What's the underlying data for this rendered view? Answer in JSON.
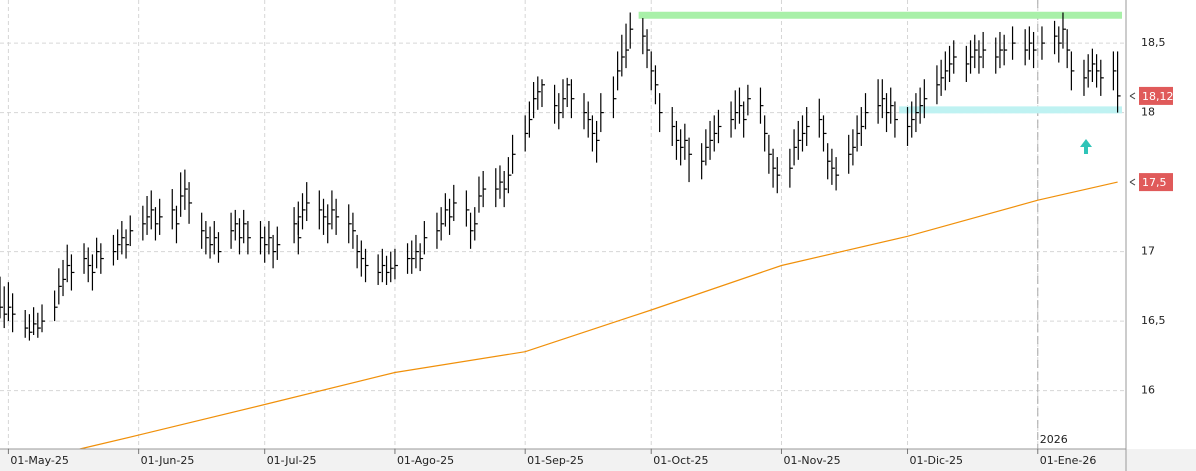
{
  "chart_data": {
    "type": "ohlc",
    "xlim": [
      "2025-04-29",
      "2026-01-22"
    ],
    "ylim": [
      15.58,
      18.81
    ],
    "yticks": [
      16,
      {
        "value": 16.5,
        "label": "16,5"
      },
      17,
      18,
      {
        "value": 18.5,
        "label": "18,5"
      }
    ],
    "xticks": [
      {
        "value": "2025-05-01",
        "label": "01-May-25"
      },
      {
        "value": "2025-06-01",
        "label": "01-Jun-25"
      },
      {
        "value": "2025-07-01",
        "label": "01-Jul-25"
      },
      {
        "value": "2025-08-01",
        "label": "01-Ago-25"
      },
      {
        "value": "2025-09-01",
        "label": "01-Sep-25"
      },
      {
        "value": "2025-10-01",
        "label": "01-Oct-25"
      },
      {
        "value": "2025-11-01",
        "label": "01-Nov-25"
      },
      {
        "value": "2025-12-01",
        "label": "01-Dic-25"
      },
      {
        "value": "2026-01-01",
        "label": "01-Ene-26"
      }
    ],
    "year_marker": {
      "value": "2026-01-01",
      "label": "2026"
    },
    "grid": true,
    "bar_color": "#000000",
    "bars": [
      [
        "2025-04-29",
        16.82,
        16.52,
        16.6
      ],
      [
        "2025-04-30",
        16.75,
        16.45,
        16.55
      ],
      [
        "2025-05-01",
        16.78,
        16.5,
        16.6
      ],
      [
        "2025-05-02",
        16.7,
        16.42,
        16.55
      ],
      [
        "2025-05-05",
        16.58,
        16.38,
        16.45
      ],
      [
        "2025-05-06",
        16.55,
        16.36,
        16.42
      ],
      [
        "2025-05-07",
        16.6,
        16.4,
        16.48
      ],
      [
        "2025-05-08",
        16.56,
        16.38,
        16.45
      ],
      [
        "2025-05-09",
        16.62,
        16.42,
        16.5
      ],
      [
        "2025-05-12",
        16.72,
        16.5,
        16.6
      ],
      [
        "2025-05-13",
        16.88,
        16.62,
        16.75
      ],
      [
        "2025-05-14",
        16.94,
        16.68,
        16.8
      ],
      [
        "2025-05-15",
        17.05,
        16.78,
        16.9
      ],
      [
        "2025-05-16",
        16.98,
        16.72,
        16.85
      ],
      [
        "2025-05-19",
        17.06,
        16.84,
        16.95
      ],
      [
        "2025-05-20",
        17.03,
        16.78,
        16.9
      ],
      [
        "2025-05-21",
        16.98,
        16.72,
        16.85
      ],
      [
        "2025-05-22",
        17.1,
        16.88,
        17.0
      ],
      [
        "2025-05-23",
        17.06,
        16.84,
        16.95
      ],
      [
        "2025-05-26",
        17.12,
        16.9,
        17.0
      ],
      [
        "2025-05-27",
        17.16,
        16.94,
        17.05
      ],
      [
        "2025-05-28",
        17.22,
        16.98,
        17.1
      ],
      [
        "2025-05-29",
        17.16,
        16.95,
        17.05
      ],
      [
        "2025-05-30",
        17.26,
        17.04,
        17.15
      ],
      [
        "2025-06-02",
        17.33,
        17.08,
        17.2
      ],
      [
        "2025-06-03",
        17.4,
        17.12,
        17.25
      ],
      [
        "2025-06-04",
        17.44,
        17.16,
        17.3
      ],
      [
        "2025-06-05",
        17.32,
        17.08,
        17.2
      ],
      [
        "2025-06-06",
        17.38,
        17.12,
        17.25
      ],
      [
        "2025-06-09",
        17.45,
        17.16,
        17.3
      ],
      [
        "2025-06-10",
        17.33,
        17.06,
        17.2
      ],
      [
        "2025-06-11",
        17.57,
        17.25,
        17.4
      ],
      [
        "2025-06-12",
        17.59,
        17.3,
        17.45
      ],
      [
        "2025-06-13",
        17.5,
        17.2,
        17.35
      ],
      [
        "2025-06-16",
        17.28,
        17.02,
        17.15
      ],
      [
        "2025-06-17",
        17.22,
        16.98,
        17.1
      ],
      [
        "2025-06-18",
        17.18,
        16.95,
        17.05
      ],
      [
        "2025-06-19",
        17.22,
        16.98,
        17.1
      ],
      [
        "2025-06-20",
        17.14,
        16.92,
        17.0
      ],
      [
        "2025-06-23",
        17.28,
        17.02,
        17.15
      ],
      [
        "2025-06-24",
        17.3,
        17.08,
        17.2
      ],
      [
        "2025-06-25",
        17.24,
        16.98,
        17.1
      ],
      [
        "2025-06-26",
        17.3,
        17.06,
        17.2
      ],
      [
        "2025-06-27",
        17.22,
        16.98,
        17.1
      ],
      [
        "2025-06-30",
        17.22,
        16.98,
        17.1
      ],
      [
        "2025-07-01",
        17.18,
        16.92,
        17.05
      ],
      [
        "2025-07-02",
        17.22,
        16.98,
        17.1
      ],
      [
        "2025-07-03",
        17.12,
        16.88,
        17.0
      ],
      [
        "2025-07-04",
        17.18,
        16.94,
        17.05
      ],
      [
        "2025-07-09",
        17.22,
        16.98,
        17.1
      ],
      [
        "2025-07-08",
        17.32,
        17.06,
        17.2
      ],
      [
        "2025-07-09",
        17.36,
        17.12,
        17.25
      ],
      [
        "2025-07-10",
        17.42,
        17.16,
        17.3
      ],
      [
        "2025-07-11",
        17.5,
        17.22,
        17.35
      ],
      [
        "2025-07-14",
        17.44,
        17.16,
        17.3
      ],
      [
        "2025-07-15",
        17.38,
        17.12,
        17.25
      ],
      [
        "2025-07-16",
        17.34,
        17.06,
        17.2
      ],
      [
        "2025-07-17",
        17.44,
        17.16,
        17.3
      ],
      [
        "2025-07-18",
        17.38,
        17.12,
        17.25
      ],
      [
        "2025-07-21",
        17.34,
        17.06,
        17.2
      ],
      [
        "2025-07-22",
        17.28,
        17.02,
        17.15
      ],
      [
        "2025-07-23",
        17.12,
        16.88,
        17.0
      ],
      [
        "2025-07-24",
        17.08,
        16.82,
        16.95
      ],
      [
        "2025-07-25",
        17.02,
        16.78,
        16.9
      ],
      [
        "2025-07-28",
        16.98,
        16.76,
        16.85
      ],
      [
        "2025-07-29",
        17.02,
        16.78,
        16.9
      ],
      [
        "2025-07-30",
        16.97,
        16.76,
        16.85
      ],
      [
        "2025-07-31",
        17.0,
        16.78,
        16.88
      ],
      [
        "2025-08-01",
        17.02,
        16.8,
        16.9
      ],
      [
        "2025-08-04",
        17.06,
        16.84,
        16.95
      ],
      [
        "2025-08-05",
        17.08,
        16.84,
        16.95
      ],
      [
        "2025-08-06",
        17.12,
        16.88,
        17.0
      ],
      [
        "2025-08-07",
        17.06,
        16.86,
        16.95
      ],
      [
        "2025-08-08",
        17.22,
        16.98,
        17.1
      ],
      [
        "2025-08-11",
        17.28,
        17.02,
        17.15
      ],
      [
        "2025-08-12",
        17.32,
        17.08,
        17.2
      ],
      [
        "2025-08-13",
        17.42,
        17.18,
        17.3
      ],
      [
        "2025-08-14",
        17.38,
        17.12,
        17.25
      ],
      [
        "2025-08-15",
        17.48,
        17.22,
        17.35
      ],
      [
        "2025-08-18",
        17.44,
        17.18,
        17.3
      ],
      [
        "2025-08-19",
        17.28,
        17.02,
        17.15
      ],
      [
        "2025-08-20",
        17.32,
        17.08,
        17.2
      ],
      [
        "2025-08-21",
        17.54,
        17.28,
        17.4
      ],
      [
        "2025-08-22",
        17.58,
        17.32,
        17.45
      ],
      [
        "2025-08-25",
        17.6,
        17.32,
        17.45
      ],
      [
        "2025-08-26",
        17.62,
        17.38,
        17.5
      ],
      [
        "2025-08-27",
        17.58,
        17.32,
        17.45
      ],
      [
        "2025-08-28",
        17.68,
        17.42,
        17.55
      ],
      [
        "2025-08-29",
        17.84,
        17.56,
        17.7
      ],
      [
        "2025-09-01",
        17.98,
        17.72,
        17.85
      ],
      [
        "2025-09-02",
        18.08,
        17.82,
        17.95
      ],
      [
        "2025-09-03",
        18.22,
        17.96,
        18.1
      ],
      [
        "2025-09-04",
        18.26,
        18.02,
        18.15
      ],
      [
        "2025-09-05",
        18.24,
        18.04,
        18.2
      ],
      [
        "2025-09-08",
        18.2,
        17.92,
        18.05
      ],
      [
        "2025-09-09",
        18.14,
        17.88,
        18.0
      ],
      [
        "2025-09-10",
        18.24,
        17.96,
        18.1
      ],
      [
        "2025-09-11",
        18.25,
        18.04,
        18.2
      ],
      [
        "2025-09-12",
        18.24,
        17.96,
        18.1
      ],
      [
        "2025-09-15",
        18.14,
        17.88,
        18.0
      ],
      [
        "2025-09-16",
        18.08,
        17.82,
        17.95
      ],
      [
        "2025-09-17",
        17.98,
        17.72,
        17.85
      ],
      [
        "2025-09-18",
        17.94,
        17.64,
        17.8
      ],
      [
        "2025-09-19",
        18.14,
        17.86,
        18.0
      ],
      [
        "2025-09-22",
        18.26,
        17.96,
        18.1
      ],
      [
        "2025-09-23",
        18.44,
        18.16,
        18.3
      ],
      [
        "2025-09-24",
        18.56,
        18.26,
        18.4
      ],
      [
        "2025-09-25",
        18.64,
        18.32,
        18.45
      ],
      [
        "2025-09-26",
        18.72,
        18.46,
        18.6
      ],
      [
        "2025-09-29",
        18.68,
        18.42,
        18.55
      ],
      [
        "2025-09-30",
        18.6,
        18.32,
        18.45
      ],
      [
        "2025-10-01",
        18.44,
        18.16,
        18.3
      ],
      [
        "2025-10-02",
        18.34,
        18.06,
        18.2
      ],
      [
        "2025-10-03",
        18.14,
        17.86,
        18.0
      ],
      [
        "2025-10-06",
        18.04,
        17.76,
        17.9
      ],
      [
        "2025-10-07",
        17.94,
        17.66,
        17.8
      ],
      [
        "2025-10-08",
        17.88,
        17.62,
        17.75
      ],
      [
        "2025-10-09",
        17.92,
        17.66,
        17.8
      ],
      [
        "2025-10-10",
        17.82,
        17.5,
        17.7
      ],
      [
        "2025-10-13",
        17.78,
        17.52,
        17.65
      ],
      [
        "2025-10-14",
        17.88,
        17.62,
        17.75
      ],
      [
        "2025-10-15",
        17.94,
        17.66,
        17.8
      ],
      [
        "2025-10-16",
        17.98,
        17.72,
        17.85
      ],
      [
        "2025-10-17",
        18.02,
        17.78,
        17.9
      ],
      [
        "2025-10-20",
        18.08,
        17.82,
        17.95
      ],
      [
        "2025-10-21",
        18.16,
        17.88,
        18.0
      ],
      [
        "2025-10-22",
        18.18,
        17.92,
        18.05
      ],
      [
        "2025-10-23",
        18.08,
        17.82,
        17.95
      ],
      [
        "2025-10-24",
        18.2,
        17.98,
        18.1
      ],
      [
        "2025-10-27",
        18.18,
        17.92,
        18.05
      ],
      [
        "2025-10-28",
        17.98,
        17.72,
        17.85
      ],
      [
        "2025-10-29",
        17.84,
        17.56,
        17.7
      ],
      [
        "2025-10-30",
        17.74,
        17.46,
        17.6
      ],
      [
        "2025-10-31",
        17.68,
        17.42,
        17.55
      ],
      [
        "2025-11-03",
        17.74,
        17.46,
        17.6
      ],
      [
        "2025-11-04",
        17.88,
        17.62,
        17.75
      ],
      [
        "2025-11-05",
        17.94,
        17.66,
        17.8
      ],
      [
        "2025-11-06",
        17.98,
        17.72,
        17.85
      ],
      [
        "2025-11-07",
        18.04,
        17.76,
        17.9
      ],
      [
        "2025-11-10",
        18.1,
        17.82,
        17.95
      ],
      [
        "2025-11-11",
        17.98,
        17.72,
        17.85
      ],
      [
        "2025-11-12",
        17.78,
        17.52,
        17.65
      ],
      [
        "2025-11-13",
        17.74,
        17.48,
        17.6
      ],
      [
        "2025-11-14",
        17.68,
        17.44,
        17.55
      ],
      [
        "2025-11-17",
        17.84,
        17.56,
        17.7
      ],
      [
        "2025-11-18",
        17.88,
        17.62,
        17.75
      ],
      [
        "2025-11-19",
        17.98,
        17.72,
        17.85
      ],
      [
        "2025-11-20",
        18.04,
        17.76,
        17.9
      ],
      [
        "2025-11-21",
        18.14,
        17.88,
        18.0
      ],
      [
        "2025-11-24",
        18.24,
        17.92,
        18.05
      ],
      [
        "2025-11-25",
        18.24,
        17.96,
        18.1
      ],
      [
        "2025-11-26",
        18.14,
        17.86,
        18.0
      ],
      [
        "2025-11-27",
        18.18,
        17.92,
        18.05
      ],
      [
        "2025-11-28",
        18.08,
        17.82,
        17.95
      ],
      [
        "2025-12-01",
        18.04,
        17.76,
        17.9
      ],
      [
        "2025-12-02",
        18.08,
        17.82,
        17.95
      ],
      [
        "2025-12-03",
        18.14,
        17.86,
        18.0
      ],
      [
        "2025-12-04",
        18.18,
        17.92,
        18.05
      ],
      [
        "2025-12-05",
        18.24,
        17.96,
        18.1
      ],
      [
        "2025-12-08",
        18.34,
        18.06,
        18.2
      ],
      [
        "2025-12-09",
        18.38,
        18.12,
        18.25
      ],
      [
        "2025-12-10",
        18.44,
        18.16,
        18.3
      ],
      [
        "2025-12-11",
        18.48,
        18.22,
        18.35
      ],
      [
        "2025-12-12",
        18.52,
        18.28,
        18.4
      ],
      [
        "2025-12-15",
        18.48,
        18.22,
        18.35
      ],
      [
        "2025-12-16",
        18.52,
        18.28,
        18.4
      ],
      [
        "2025-12-17",
        18.56,
        18.32,
        18.45
      ],
      [
        "2025-12-18",
        18.52,
        18.28,
        18.4
      ],
      [
        "2025-12-19",
        18.58,
        18.32,
        18.45
      ],
      [
        "2025-12-22",
        18.54,
        18.28,
        18.4
      ],
      [
        "2025-12-23",
        18.58,
        18.32,
        18.45
      ],
      [
        "2025-12-24",
        18.56,
        18.34,
        18.45
      ],
      [
        "2025-12-26",
        18.62,
        18.38,
        18.5
      ],
      [
        "2025-12-29",
        18.6,
        18.34,
        18.45
      ],
      [
        "2025-12-30",
        18.62,
        18.38,
        18.5
      ],
      [
        "2025-12-31",
        18.58,
        18.32,
        18.45
      ],
      [
        "2026-01-02",
        18.62,
        18.38,
        18.5
      ],
      [
        "2026-01-05",
        18.66,
        18.42,
        18.55
      ],
      [
        "2026-01-06",
        18.62,
        18.36,
        18.5
      ],
      [
        "2026-01-07",
        18.72,
        18.46,
        18.6
      ],
      [
        "2026-01-08",
        18.6,
        18.32,
        18.45
      ],
      [
        "2026-01-09",
        18.44,
        18.16,
        18.3
      ],
      [
        "2026-01-12",
        18.38,
        18.12,
        18.25
      ],
      [
        "2026-01-13",
        18.42,
        18.18,
        18.3
      ],
      [
        "2026-01-14",
        18.46,
        18.22,
        18.35
      ],
      [
        "2026-01-15",
        18.42,
        18.18,
        18.3
      ],
      [
        "2026-01-16",
        18.38,
        18.12,
        18.25
      ],
      [
        "2026-01-19",
        18.44,
        18.16,
        18.3
      ],
      [
        "2026-01-20",
        18.44,
        18.0,
        18.12
      ]
    ],
    "moving_average": {
      "color": "#f0900a",
      "x": [
        "2025-05-18",
        "2025-06-01",
        "2025-07-01",
        "2025-08-01",
        "2025-09-01",
        "2025-10-01",
        "2025-11-01",
        "2025-12-01",
        "2026-01-01",
        "2026-01-20"
      ],
      "values": [
        15.58,
        15.68,
        15.9,
        16.13,
        16.28,
        16.58,
        16.9,
        17.11,
        17.37,
        17.5
      ]
    },
    "levels": [
      {
        "value": 18.7,
        "from": "2025-09-28",
        "color": "#a8f0a8"
      },
      {
        "value": 18.02,
        "from": "2025-11-29",
        "color": "#bff2f2"
      }
    ],
    "price_labels": [
      {
        "value": 18.12,
        "label": "18,12",
        "color": "#e05a5a"
      },
      {
        "value": 17.5,
        "label": "17,5",
        "color": "#e05a5a"
      }
    ]
  }
}
